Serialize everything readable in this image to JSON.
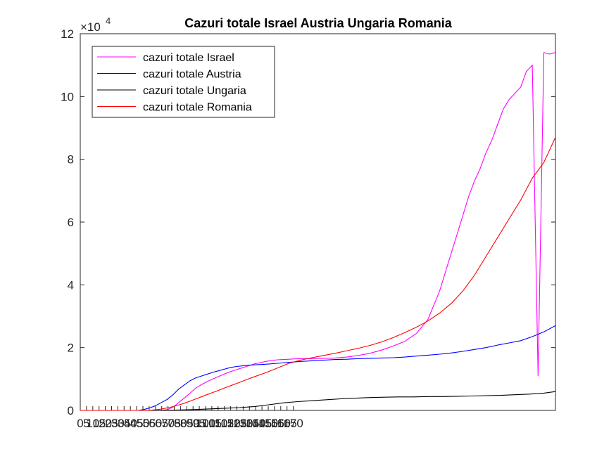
{
  "chart_data": {
    "type": "line",
    "title": "Cazuri totale Israel Austria Ungaria Romania",
    "xlabel": "",
    "ylabel": "",
    "y_exponent_label": "×10",
    "y_exponent": "4",
    "xlim": [
      0,
      164
    ],
    "ylim": [
      0,
      120000
    ],
    "yticks": [
      0,
      20000,
      40000,
      60000,
      80000,
      100000,
      120000
    ],
    "ytick_labels": [
      "0",
      "2",
      "4",
      "6",
      "8",
      "10",
      "12"
    ],
    "xticks": [
      0,
      5,
      10,
      15,
      20,
      25,
      30,
      35,
      40,
      45,
      50,
      55,
      60,
      65,
      70,
      75,
      80,
      85,
      90,
      95,
      100,
      105,
      110,
      115,
      120,
      125,
      130,
      135,
      140,
      145,
      150,
      155,
      160,
      165,
      170
    ],
    "xtick_labels": [
      "0",
      "5",
      "10",
      "15",
      "20",
      "25",
      "30",
      "35",
      "40",
      "45",
      "50",
      "55",
      "60",
      "65",
      "70",
      "75",
      "80",
      "85",
      "90",
      "95",
      "100",
      "105",
      "110",
      "115",
      "120",
      "125",
      "130",
      "135",
      "140",
      "145",
      "150",
      "155",
      "160",
      "165",
      "170"
    ],
    "xtick_spacing_px": 8.9,
    "legend_position": "top-left",
    "grid": false,
    "series": [
      {
        "name": "cazuri totale Israel",
        "color": "#ff00ff",
        "x": [
          0,
          10,
          20,
          24,
          28,
          30,
          32,
          34,
          36,
          38,
          40,
          42,
          44,
          46,
          48,
          50,
          52,
          54,
          56,
          58,
          60,
          62,
          64,
          66,
          68,
          70,
          72,
          74,
          76,
          78,
          80,
          84,
          88,
          92,
          96,
          100,
          104,
          108,
          112,
          116,
          120,
          124,
          126,
          128,
          130,
          132,
          134,
          136,
          138,
          140,
          142,
          144,
          146,
          148,
          150,
          152,
          154,
          156,
          158,
          160,
          162,
          163,
          164
        ],
        "y": [
          0,
          0,
          0,
          0,
          50,
          250,
          1000,
          2500,
          4000,
          5600,
          7200,
          8300,
          9300,
          10100,
          10900,
          11700,
          12400,
          13000,
          13600,
          14200,
          14800,
          15200,
          15600,
          15900,
          16100,
          16200,
          16300,
          16400,
          16500,
          16500,
          16500,
          16600,
          16700,
          17000,
          17500,
          18200,
          19200,
          20500,
          22000,
          24500,
          29000,
          38000,
          44000,
          50000,
          56000,
          62000,
          68000,
          73000,
          77000,
          82000,
          86000,
          91000,
          96000,
          99000,
          101000,
          103000,
          108000,
          110000,
          11000,
          114000,
          113500,
          113800,
          114000
        ]
      },
      {
        "name": "cazuri totale Austria",
        "color": "#0000ff",
        "x": [
          0,
          10,
          20,
          22,
          24,
          26,
          28,
          30,
          32,
          34,
          36,
          38,
          40,
          42,
          44,
          46,
          48,
          50,
          52,
          54,
          56,
          58,
          60,
          64,
          68,
          72,
          76,
          80,
          84,
          88,
          92,
          96,
          100,
          104,
          108,
          112,
          116,
          120,
          124,
          128,
          132,
          136,
          140,
          144,
          148,
          152,
          156,
          160,
          164
        ],
        "y": [
          0,
          0,
          0,
          300,
          800,
          1500,
          2500,
          3500,
          5000,
          6800,
          8200,
          9500,
          10400,
          11000,
          11600,
          12200,
          12700,
          13200,
          13700,
          14000,
          14200,
          14400,
          14500,
          14700,
          15000,
          15300,
          15600,
          15800,
          16000,
          16200,
          16300,
          16500,
          16600,
          16700,
          16800,
          17000,
          17300,
          17600,
          17900,
          18300,
          18800,
          19400,
          20000,
          20800,
          21500,
          22200,
          23500,
          25000,
          27000
        ]
      },
      {
        "name": "cazuri totale Ungaria",
        "color": "#000000",
        "x": [
          0,
          10,
          20,
          25,
          30,
          35,
          40,
          45,
          50,
          55,
          60,
          65,
          70,
          75,
          80,
          85,
          90,
          95,
          100,
          105,
          110,
          115,
          120,
          125,
          130,
          135,
          140,
          145,
          150,
          155,
          160,
          164
        ],
        "y": [
          0,
          0,
          0,
          0,
          50,
          150,
          300,
          500,
          700,
          900,
          1200,
          1800,
          2400,
          2800,
          3100,
          3400,
          3700,
          3900,
          4100,
          4200,
          4300,
          4300,
          4400,
          4400,
          4500,
          4600,
          4700,
          4800,
          5000,
          5200,
          5500,
          6000
        ]
      },
      {
        "name": "cazuri totale Romania",
        "color": "#ff0000",
        "x": [
          0,
          10,
          20,
          24,
          26,
          28,
          30,
          32,
          34,
          36,
          38,
          40,
          42,
          44,
          46,
          48,
          50,
          52,
          54,
          56,
          58,
          60,
          64,
          68,
          72,
          76,
          80,
          84,
          88,
          92,
          96,
          100,
          104,
          108,
          112,
          116,
          120,
          124,
          128,
          132,
          136,
          140,
          144,
          148,
          152,
          156,
          160,
          164
        ],
        "y": [
          0,
          0,
          0,
          50,
          200,
          450,
          800,
          1200,
          1700,
          2300,
          3000,
          3700,
          4400,
          5100,
          5800,
          6500,
          7200,
          7900,
          8600,
          9300,
          10000,
          10700,
          12000,
          13500,
          15000,
          16000,
          16800,
          17500,
          18200,
          19000,
          19800,
          20700,
          21800,
          23200,
          24800,
          26500,
          28500,
          31000,
          34000,
          38000,
          43000,
          49000,
          55000,
          61000,
          67000,
          74000,
          79000,
          87000
        ]
      }
    ]
  }
}
